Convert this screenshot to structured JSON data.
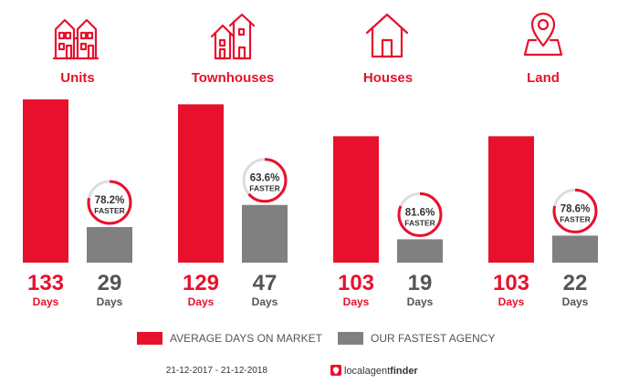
{
  "chart_data": {
    "type": "bar",
    "categories": [
      "Units",
      "Townhouses",
      "Houses",
      "Land"
    ],
    "series": [
      {
        "name": "AVERAGE DAYS ON MARKET",
        "values": [
          133,
          129,
          103,
          103
        ]
      },
      {
        "name": "OUR FASTEST AGENCY",
        "values": [
          29,
          47,
          19,
          22
        ]
      }
    ],
    "percent_faster": [
      "78.2%",
      "63.6%",
      "81.6%",
      "78.6%"
    ],
    "percent_faster_values": [
      78.2,
      63.6,
      81.6,
      78.6
    ],
    "faster_label": "FASTER",
    "unit_label": "Days",
    "icons": [
      "apartment-building-icon",
      "townhouse-icon",
      "house-icon",
      "map-pin-icon"
    ],
    "ylim": [
      0,
      133
    ],
    "grid": false,
    "legend_position": "bottom"
  },
  "colors": {
    "primary": "#e8112d",
    "secondary": "#808080",
    "ring_track": "#dddddd",
    "text": "#555555"
  },
  "footer": {
    "date_range": "21-12-2017 - 21-12-2018",
    "brand_left": "localagent",
    "brand_right": "finder"
  }
}
